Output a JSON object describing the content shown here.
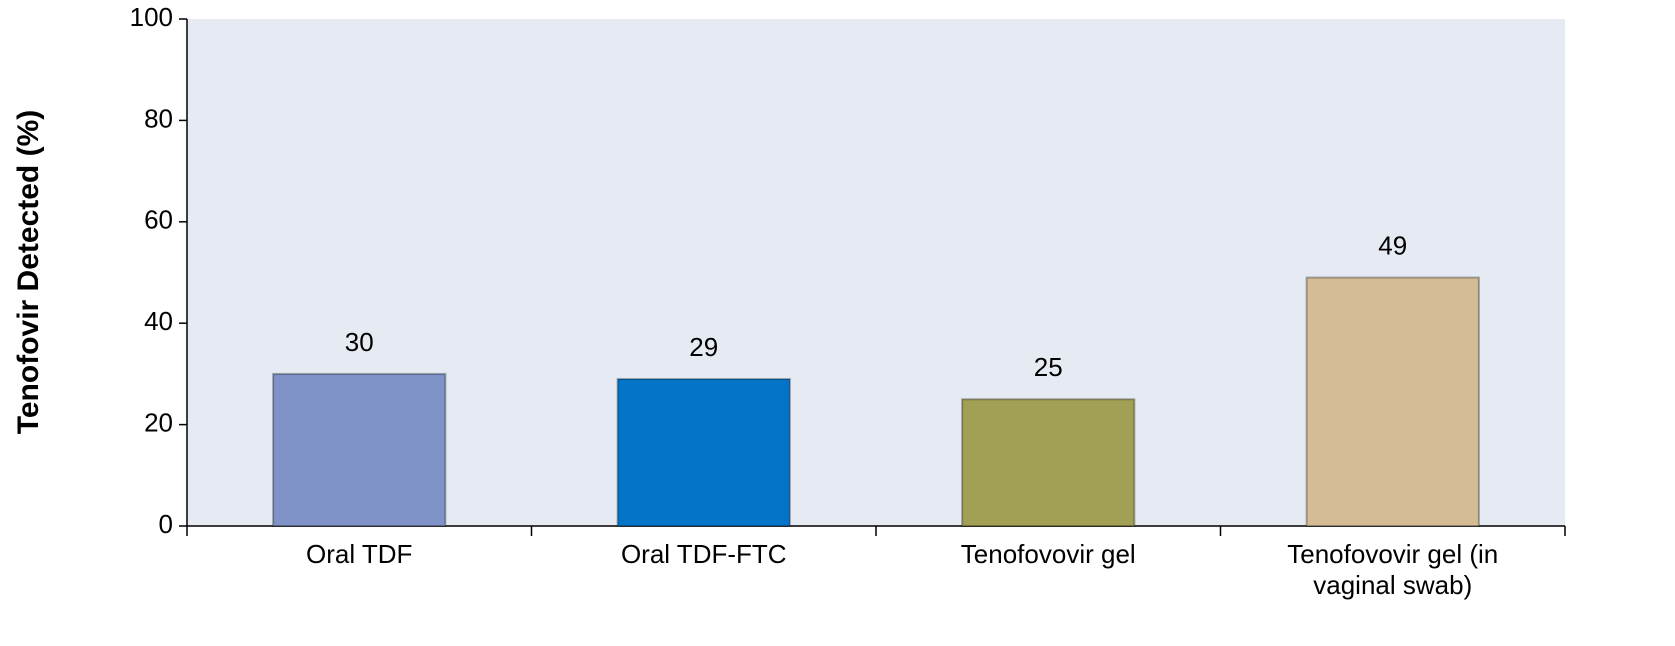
{
  "chart_data": {
    "type": "bar",
    "y_label": "Tenofovir Detected (%)",
    "categories": [
      "Oral TDF",
      "Oral TDF-FTC",
      "Tenofovovir gel",
      "Tenofovovir gel (in vaginal swab)"
    ],
    "values": [
      30,
      29,
      25,
      49
    ],
    "colors": [
      "#7f93c9",
      "#0474c9",
      "#a2a055",
      "#d4bd94"
    ],
    "ylim": [
      0,
      100
    ],
    "yticks": [
      0,
      20,
      40,
      60,
      80,
      100
    ],
    "grid": false
  }
}
